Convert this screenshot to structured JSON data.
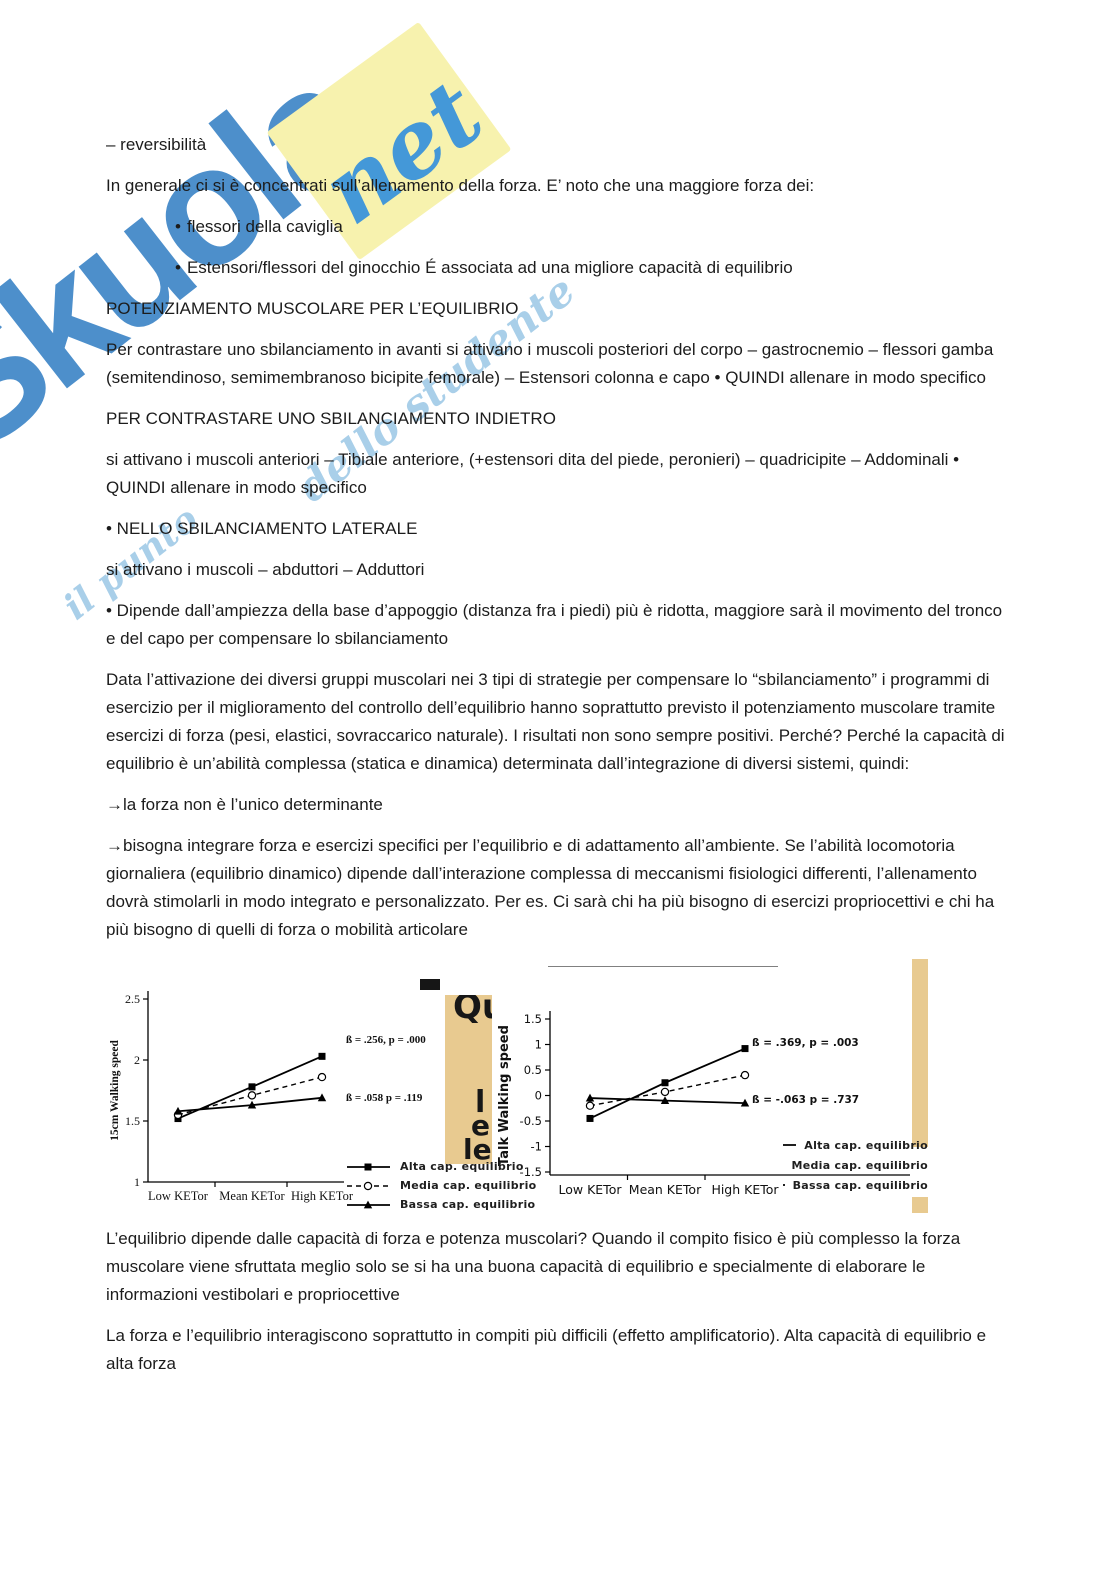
{
  "watermark": {
    "brand": "Skuola",
    "note_word": "net",
    "tagline_right": "dello studente",
    "tagline_left": "il punto",
    "colors": {
      "blue": "#2e7cc3",
      "light_blue": "#a9cfe9",
      "yellow": "#f7f2ae"
    }
  },
  "document": {
    "blocks": [
      {
        "section": "top",
        "kind": "p",
        "text": "– reversibilità"
      },
      {
        "section": "top",
        "kind": "p",
        "text": "In generale ci si è concentrati sull’allenamento della forza. E’ noto che una maggiore forza dei:"
      },
      {
        "section": "top",
        "kind": "bullet",
        "text": "flessori della caviglia"
      },
      {
        "section": "top",
        "kind": "bullet",
        "text": "Estensori/flessori del ginocchio É associata ad una migliore capacità di equilibrio"
      },
      {
        "section": "top",
        "kind": "p",
        "text": "POTENZIAMENTO MUSCOLARE PER L’EQUILIBRIO"
      },
      {
        "section": "top",
        "kind": "p",
        "text": "Per contrastare uno sbilanciamento in avanti si attivano i muscoli posteriori del corpo – gastrocnemio – flessori gamba (semitendinoso, semimembranoso bicipite femorale) – Estensori colonna e capo • QUINDI allenare in modo specifico"
      },
      {
        "section": "top",
        "kind": "p",
        "text": "PER CONTRASTARE UNO SBILANCIAMENTO INDIETRO"
      },
      {
        "section": "top",
        "kind": "p",
        "text": "si attivano i muscoli anteriori – Tibiale anteriore, (+estensori dita del piede, peronieri) – quadricipite – Addominali • QUINDI allenare in modo specifico"
      },
      {
        "section": "top",
        "kind": "p",
        "text": "• NELLO SBILANCIAMENTO LATERALE"
      },
      {
        "section": "top",
        "kind": "p",
        "text": "si attivano i muscoli – abduttori – Adduttori"
      },
      {
        "section": "top",
        "kind": "p",
        "text": "• Dipende dall’ampiezza della base d’appoggio (distanza fra i piedi) più è ridotta, maggiore sarà il movimento del tronco e del capo per compensare lo sbilanciamento"
      },
      {
        "section": "top",
        "kind": "p",
        "text": "Data l’attivazione dei diversi gruppi muscolari nei 3 tipi di strategie per compensare lo “sbilanciamento” i programmi di esercizio per il miglioramento del controllo dell’equilibrio hanno soprattutto previsto il potenziamento muscolare tramite esercizi di forza (pesi, elastici, sovraccarico naturale). I risultati non sono sempre positivi. Perché? Perché la capacità di equilibrio è un’abilità complessa (statica e dinamica) determinata dall’integrazione di diversi sistemi, quindi:"
      },
      {
        "section": "top",
        "kind": "p",
        "text": "→la forza non è l’unico determinante"
      },
      {
        "section": "top",
        "kind": "p",
        "text": "→bisogna integrare forza e esercizi specifici per l’equilibrio e di adattamento all’ambiente. Se l’abilità locomotoria giornaliera (equilibrio dinamico) dipende dall’interazione complessa di meccanismi fisiologici differenti, l’allenamento dovrà stimolarli in modo integrato e personalizzato. Per es. Ci sarà chi ha più bisogno di esercizi propriocettivi e chi ha più bisogno di quelli di forza o mobilità articolare"
      },
      {
        "section": "bottom",
        "kind": "p",
        "text": "L’equilibrio dipende dalle capacità di forza e potenza muscolari? Quando il compito fisico è più complesso la forza muscolare viene sfruttata meglio solo se si ha una buona capacità di equilibrio e specialmente di elaborare le informazioni vestibolari e propriocettive"
      },
      {
        "section": "bottom",
        "kind": "p",
        "text": "La forza e l’equilibrio interagiscono soprattutto in compiti più difficili (effetto amplificatorio). Alta capacità di equilibrio e alta forza"
      }
    ]
  },
  "figure": {
    "fragment_letters": [
      "Qu",
      "l",
      "e",
      "le"
    ]
  },
  "chart_data": [
    {
      "type": "line",
      "title": "",
      "xlabel": "",
      "ylabel": "15cm Walking speed",
      "categories": [
        "Low KETor",
        "Mean KETor",
        "High KETor"
      ],
      "ylim": [
        1,
        2.5
      ],
      "yticks": [
        1,
        1.5,
        2,
        2.5
      ],
      "grid": false,
      "legend_position": "below-right",
      "series": [
        {
          "name": "Alta cap. equilibrio",
          "marker": "square",
          "line": "solid",
          "values": [
            1.52,
            1.78,
            2.03
          ]
        },
        {
          "name": "Media cap. equilibrio",
          "marker": "circle-open",
          "line": "dashed",
          "values": [
            1.55,
            1.71,
            1.86
          ]
        },
        {
          "name": "Bassa cap. equilibrio",
          "marker": "triangle",
          "line": "solid",
          "values": [
            1.58,
            1.63,
            1.69
          ]
        }
      ],
      "annotations": [
        {
          "text": "ß = .256, p = .000"
        },
        {
          "text": "ß = .058 p = .119"
        }
      ]
    },
    {
      "type": "line",
      "title": "",
      "xlabel": "",
      "ylabel": "Talk Walking speed",
      "categories": [
        "Low KETor",
        "Mean KETor",
        "High KETor"
      ],
      "ylim": [
        -1.5,
        1.5
      ],
      "yticks": [
        -1.5,
        -1,
        -0.5,
        0,
        0.5,
        1,
        1.5
      ],
      "grid": false,
      "legend_position": "right",
      "series": [
        {
          "name": "Alta cap. equilibrio",
          "marker": "square",
          "line": "solid",
          "values": [
            -0.45,
            0.25,
            0.92
          ]
        },
        {
          "name": "Media cap. equilibrio",
          "marker": "circle-open",
          "line": "dashed",
          "values": [
            -0.2,
            0.07,
            0.4
          ]
        },
        {
          "name": "Bassa cap. equilibrio",
          "marker": "triangle",
          "line": "solid",
          "values": [
            -0.05,
            -0.1,
            -0.15
          ]
        }
      ],
      "annotations": [
        {
          "text": "ß = .369, p = .003"
        },
        {
          "text": "ß = -.063 p = .737"
        }
      ]
    }
  ]
}
